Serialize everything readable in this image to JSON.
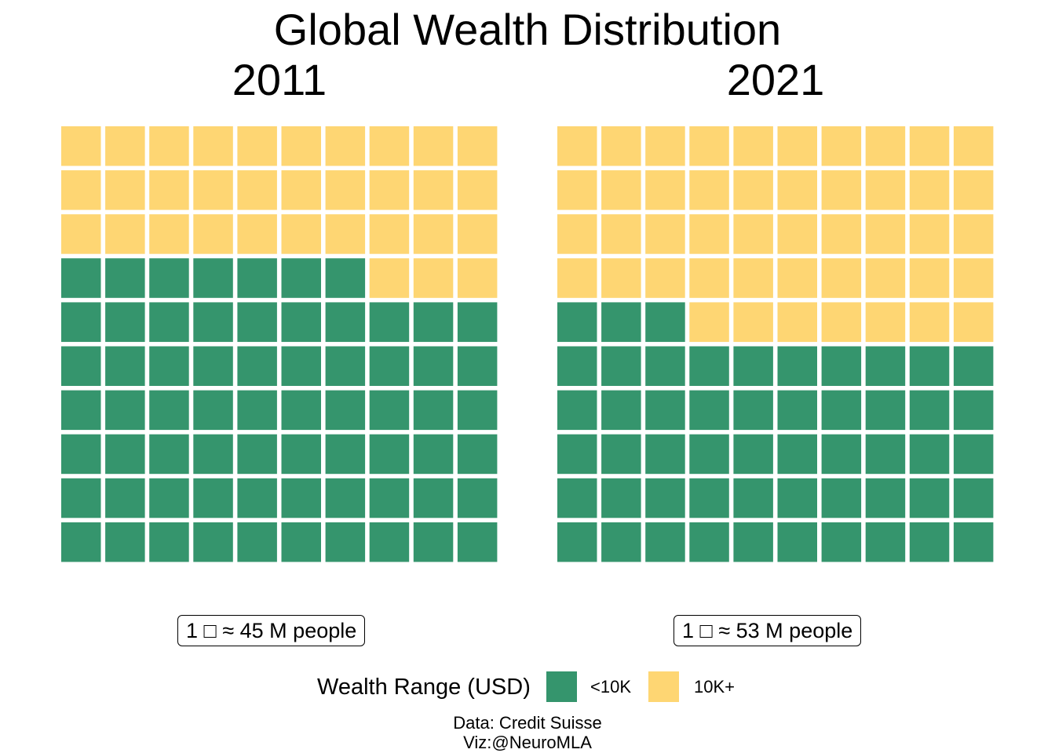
{
  "title": "Global Wealth Distribution",
  "colors": {
    "under_10k": "#35956D",
    "over_10k": "#FED673",
    "tile_border": "#FFFFFF",
    "background": "#FFFFFF"
  },
  "panels": [
    {
      "title": "2011",
      "scale_note": "1 □ ≈ 45 M people"
    },
    {
      "title": "2021",
      "scale_note": "1 □ ≈ 53 M people"
    }
  ],
  "legend": {
    "title": "Wealth Range (USD)",
    "items": [
      {
        "label": "<10K",
        "color": "#35956D"
      },
      {
        "label": "10K+",
        "color": "#FED673"
      }
    ]
  },
  "caption": {
    "source": "Data: Credit Suisse",
    "viz": "Viz:@NeuroMLA"
  },
  "chart_data": [
    {
      "type": "waffle",
      "title": "2011",
      "grid": [
        10,
        10
      ],
      "unit_label": "1 □ ≈ 45 M people",
      "categories": [
        "<10K",
        "10K+"
      ],
      "values": [
        67,
        33
      ]
    },
    {
      "type": "waffle",
      "title": "2021",
      "grid": [
        10,
        10
      ],
      "unit_label": "1 □ ≈ 53 M people",
      "categories": [
        "<10K",
        "10K+"
      ],
      "values": [
        53,
        47
      ]
    }
  ]
}
